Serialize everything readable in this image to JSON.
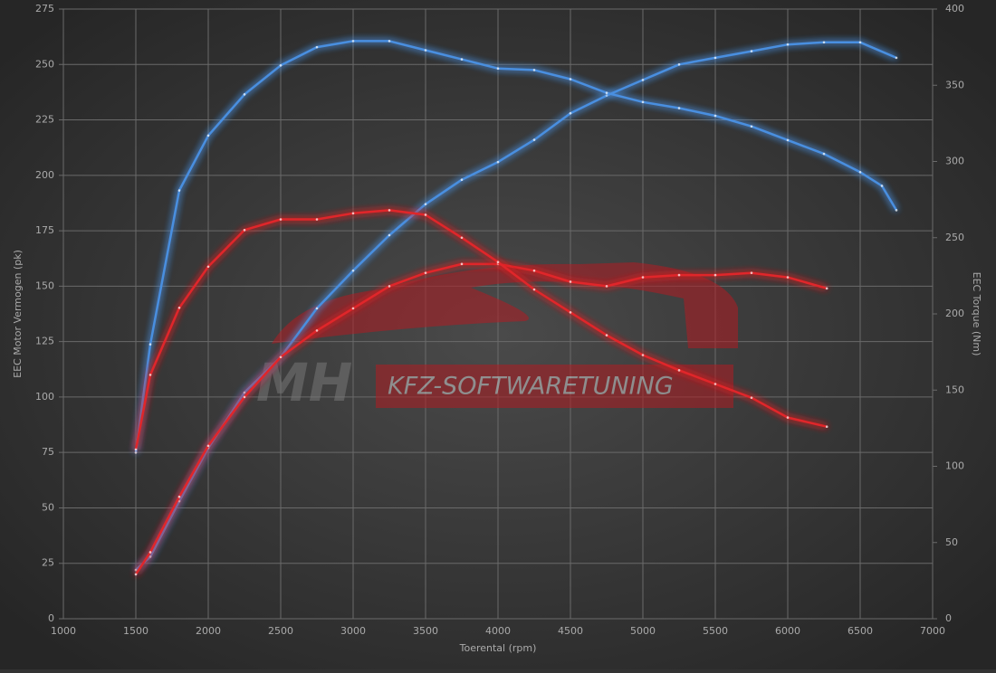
{
  "chart_data": {
    "type": "line",
    "xlabel": "Toerental (rpm)",
    "ylabel": "EEC Motor Vermogen (pk)",
    "y2label": "EEC Torque (Nm)",
    "watermark": {
      "brand": "MH",
      "text": "KFZ-SOFTWARETUNING"
    },
    "xlim": [
      1000,
      7000
    ],
    "xticks": [
      1000,
      1500,
      2000,
      2500,
      3000,
      3500,
      4000,
      4500,
      5000,
      5500,
      6000,
      6500,
      7000
    ],
    "ylim": [
      0,
      275
    ],
    "yticks": [
      0,
      25,
      50,
      75,
      100,
      125,
      150,
      175,
      200,
      225,
      250,
      275
    ],
    "y2lim": [
      0,
      400
    ],
    "y2ticks": [
      0,
      50,
      100,
      150,
      200,
      250,
      300,
      350,
      400
    ],
    "grid": true,
    "series": [
      {
        "color": "#4a8fe0",
        "axis": "y",
        "x": [
          1500,
          1600,
          1800,
          2000,
          2250,
          2500,
          2750,
          3000,
          3250,
          3500,
          3750,
          4000,
          4250,
          4500,
          4750,
          5000,
          5250,
          5500,
          5750,
          6000,
          6250,
          6500,
          6750
        ],
        "values": [
          22,
          28,
          53,
          77,
          102,
          118,
          140,
          157,
          173,
          187,
          198,
          206,
          216,
          228,
          236,
          243,
          250,
          253,
          256,
          259,
          260,
          260,
          253
        ]
      },
      {
        "color": "#4a8fe0",
        "axis": "y2",
        "x": [
          1500,
          1600,
          1800,
          2000,
          2250,
          2500,
          2750,
          3000,
          3250,
          3500,
          3750,
          4000,
          4250,
          4500,
          4750,
          5000,
          5250,
          5500,
          5750,
          6000,
          6250,
          6500,
          6650,
          6750
        ],
        "values": [
          109,
          180,
          281,
          317,
          344,
          363,
          375,
          379,
          379,
          373,
          367,
          361,
          360,
          354,
          345,
          339,
          335,
          330,
          323,
          314,
          305,
          293,
          284,
          268
        ]
      },
      {
        "color": "#e0262b",
        "axis": "y",
        "x": [
          1500,
          1600,
          1800,
          2000,
          2250,
          2500,
          2750,
          3000,
          3250,
          3500,
          3750,
          4000,
          4250,
          4500,
          4750,
          5000,
          5250,
          5500,
          5750,
          6000,
          6270
        ],
        "values": [
          20,
          30,
          55,
          78,
          100,
          118,
          130,
          140,
          150,
          156,
          160,
          160,
          157,
          152,
          150,
          154,
          155,
          155,
          156,
          154,
          149
        ]
      },
      {
        "color": "#e0262b",
        "axis": "y2",
        "x": [
          1500,
          1600,
          1800,
          2000,
          2250,
          2500,
          2750,
          3000,
          3250,
          3500,
          3750,
          4000,
          4250,
          4500,
          4750,
          5000,
          5250,
          5500,
          5750,
          6000,
          6270
        ],
        "values": [
          111,
          160,
          204,
          231,
          255,
          262,
          262,
          266,
          268,
          265,
          250,
          234,
          216,
          201,
          186,
          173,
          163,
          154,
          145,
          132,
          126
        ]
      }
    ]
  }
}
